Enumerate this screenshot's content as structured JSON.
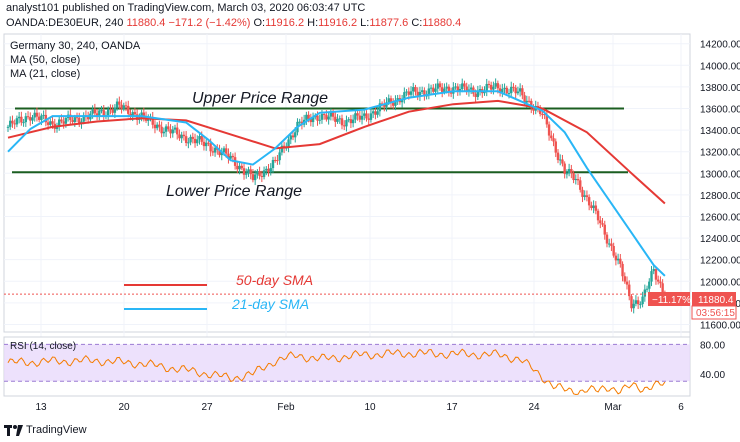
{
  "header": {
    "publish_line": "analyst101 published on TradingView.com, March 03, 2020 06:03:47 UTC",
    "symbol": "OANDA:DE30EUR, 240",
    "last_price": "11880.4",
    "change": "−171.2 (−1.42%)",
    "o_label": "O:",
    "o_value": "11916.2",
    "h_label": "H:",
    "h_value": "11916.2",
    "l_label": "L:",
    "l_value": "11877.6",
    "c_label": "C:",
    "c_value": "11880.4"
  },
  "legend": {
    "title": "Germany 30, 240, OANDA",
    "ma50": "MA (50, close)",
    "ma21": "MA (21, close)"
  },
  "annotations": {
    "upper": "Upper Price Range",
    "lower": "Lower Price Range",
    "sma50": "50-day SMA",
    "sma21": "21-day SMA"
  },
  "price_badges": {
    "pct": "−11.17%",
    "price": "11880.4",
    "countdown": "03:56:15"
  },
  "rsi": {
    "label": "RSI (14, close)",
    "upper_tick": "80.00",
    "lower_tick": "40.00"
  },
  "footer": {
    "brand": "TradingView"
  },
  "colors": {
    "up": "#26a69a",
    "down": "#ef5350",
    "ma50": "#e53935",
    "ma21": "#29b6f6",
    "range_line": "#1b5e20",
    "rsi_line": "#f57c00",
    "rsi_band": "#e9d9fb"
  },
  "chart_data": {
    "type": "line",
    "title": "Germany 30, 240, OANDA",
    "x_ticks": [
      "13",
      "20",
      "27",
      "Feb",
      "10",
      "17",
      "24",
      "Mar",
      "6"
    ],
    "y_ticks": [
      14200,
      14000,
      13800,
      13600,
      13400,
      13200,
      13000,
      12800,
      12600,
      12400,
      12200,
      12000,
      11800,
      11600
    ],
    "ylim": [
      11530,
      14290
    ],
    "levels": {
      "upper_price_range": 13600,
      "lower_price_range": 13010
    },
    "last_price": 11880.4,
    "series": [
      {
        "name": "MA (50, close)",
        "x": [
          0,
          4,
          8,
          12,
          16,
          20,
          24,
          28,
          32,
          36,
          40,
          44,
          48,
          52,
          56,
          59
        ],
        "values": [
          13330,
          13430,
          13480,
          13510,
          13490,
          13360,
          13230,
          13270,
          13430,
          13570,
          13640,
          13670,
          13600,
          13380,
          13000,
          12720
        ]
      },
      {
        "name": "MA (21, close)",
        "x": [
          0,
          2,
          4,
          8,
          12,
          16,
          18,
          20,
          22,
          24,
          26,
          28,
          32,
          36,
          40,
          44,
          48,
          50,
          52,
          54,
          56,
          58,
          59
        ],
        "values": [
          13200,
          13410,
          13530,
          13530,
          13530,
          13470,
          13310,
          13120,
          13080,
          13230,
          13430,
          13560,
          13590,
          13700,
          13760,
          13760,
          13580,
          13380,
          13050,
          12750,
          12450,
          12150,
          12050
        ]
      },
      {
        "name": "Price (close)",
        "x": [
          0,
          2,
          4,
          6,
          8,
          10,
          12,
          14,
          16,
          18,
          20,
          22,
          24,
          26,
          28,
          30,
          32,
          34,
          36,
          38,
          40,
          42,
          44,
          46,
          48,
          49,
          50,
          51,
          52,
          53,
          54,
          55,
          56,
          57,
          58,
          59
        ],
        "values": [
          13430,
          13540,
          13460,
          13500,
          13550,
          13620,
          13520,
          13410,
          13330,
          13260,
          13140,
          12950,
          13100,
          13450,
          13540,
          13480,
          13520,
          13640,
          13740,
          13770,
          13790,
          13760,
          13800,
          13740,
          13540,
          13280,
          13010,
          12950,
          12760,
          12580,
          12360,
          12120,
          11800,
          11830,
          12100,
          11880
        ]
      }
    ],
    "rsi": {
      "name": "RSI (14, close)",
      "ylim": [
        10,
        90
      ],
      "ticks": [
        80,
        40
      ],
      "x": [
        0,
        4,
        8,
        12,
        16,
        18,
        20,
        22,
        24,
        26,
        28,
        32,
        36,
        40,
        44,
        46,
        48,
        49,
        50,
        51,
        52,
        53,
        54,
        55,
        56,
        57,
        58,
        59
      ],
      "values": [
        55,
        57,
        58,
        54,
        45,
        40,
        34,
        40,
        58,
        65,
        60,
        66,
        68,
        67,
        66,
        60,
        36,
        24,
        18,
        15,
        20,
        16,
        22,
        18,
        23,
        19,
        27,
        25
      ]
    }
  }
}
